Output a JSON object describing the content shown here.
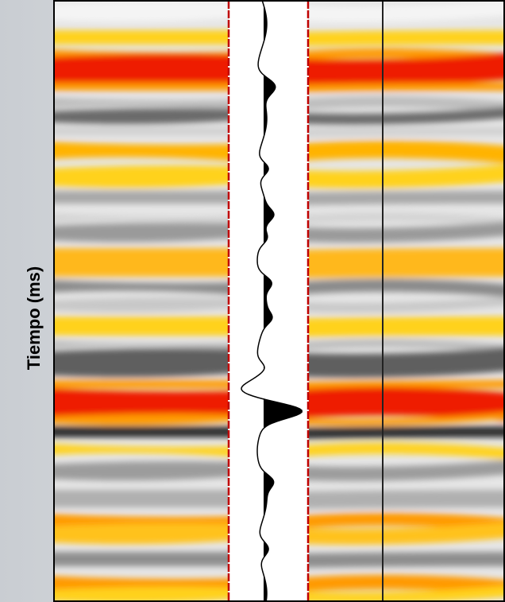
{
  "axis_label": "Tiempo (ms)"
}
